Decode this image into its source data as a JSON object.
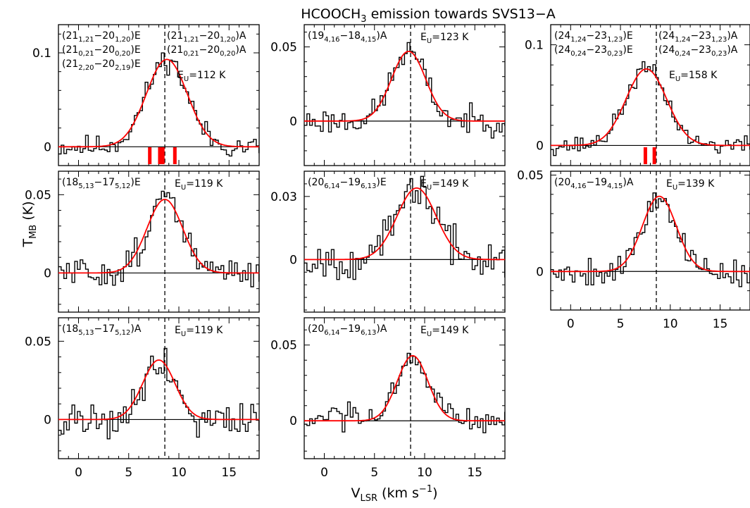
{
  "figure": {
    "title_main": "HCOOCH",
    "title_sub": "3",
    "title_tail": " emission towards SVS13−A",
    "ylabel_main": "T",
    "ylabel_sub": "MB",
    "ylabel_unit": " (K)",
    "xlabel_main": "V",
    "xlabel_sub": "LSR",
    "xlabel_unit": " (km s",
    "xlabel_sup": "−1",
    "xlabel_close": ")"
  },
  "colors": {
    "spectrum": "#000000",
    "fit": "#ff0000",
    "markers": "#ff0000",
    "baseline": "#000000"
  },
  "chart_data": [
    {
      "id": "p1",
      "type": "line",
      "xlim": [
        -2,
        18
      ],
      "ylim": [
        -0.02,
        0.13
      ],
      "yticks": [
        0,
        0.1
      ],
      "show_xticklabels": false,
      "vline": 8.6,
      "labels_left": [
        [
          "(21",
          "1,21",
          "−20",
          "1,20",
          ")E"
        ],
        [
          "(21",
          "0,21",
          "−20",
          "0,20",
          ")E"
        ],
        [
          "(21",
          "2,20",
          "−20",
          "2,19",
          ")E"
        ]
      ],
      "labels_right": [
        [
          "(21",
          "1,21",
          "−20",
          "1,20",
          ")A"
        ],
        [
          "(21",
          "0,21",
          "−20",
          "0,20",
          ")A"
        ]
      ],
      "eu": "112 K",
      "fit": {
        "amp": 0.093,
        "center": 8.8,
        "fwhm": 4.8
      },
      "markers": [
        7.1,
        8.1,
        8.4,
        9.6
      ],
      "seed": 11,
      "noise": 0.011,
      "series": [
        {
          "name": "spectrum"
        },
        {
          "name": "gaussian fit"
        }
      ]
    },
    {
      "id": "p2",
      "type": "line",
      "xlim": [
        -2,
        18
      ],
      "ylim": [
        -0.03,
        0.065
      ],
      "yticks": [
        0,
        0.05
      ],
      "show_xticklabels": false,
      "vline": 8.6,
      "labels_left": [
        [
          "(19",
          "4,16",
          "−18",
          "4,15",
          ")A"
        ]
      ],
      "labels_right": [],
      "eu": "123 K",
      "fit": {
        "amp": 0.047,
        "center": 8.4,
        "fwhm": 4.0
      },
      "markers": [],
      "seed": 23,
      "noise": 0.008,
      "series": [
        {
          "name": "spectrum"
        },
        {
          "name": "gaussian fit"
        }
      ]
    },
    {
      "id": "p3",
      "type": "line",
      "xlim": [
        -2,
        18
      ],
      "ylim": [
        -0.02,
        0.12
      ],
      "yticks": [
        0,
        0.1
      ],
      "show_xticklabels": false,
      "vline": 8.6,
      "labels_left": [
        [
          "(24",
          "1,24",
          "−23",
          "1,23",
          ")E"
        ],
        [
          "(24",
          "0,24",
          "−23",
          "0,23",
          ")E"
        ]
      ],
      "labels_right": [
        [
          "(24",
          "1,24",
          "−23",
          "1,23",
          ")A"
        ],
        [
          "(24",
          "0,24",
          "−23",
          "0,23",
          ")A"
        ]
      ],
      "eu": "158 K",
      "fit": {
        "amp": 0.076,
        "center": 7.6,
        "fwhm": 4.8
      },
      "markers": [
        7.5,
        8.4
      ],
      "seed": 37,
      "noise": 0.008,
      "series": [
        {
          "name": "spectrum"
        },
        {
          "name": "gaussian fit"
        }
      ]
    },
    {
      "id": "p4",
      "type": "line",
      "xlim": [
        -2,
        18
      ],
      "ylim": [
        -0.025,
        0.065
      ],
      "yticks": [
        0,
        0.05
      ],
      "show_xticklabels": false,
      "vline": 8.6,
      "labels_left": [
        [
          "(18",
          "5,13",
          "−17",
          "5,12",
          ")E"
        ]
      ],
      "labels_right": [],
      "eu": "119 K",
      "fit": {
        "amp": 0.047,
        "center": 8.6,
        "fwhm": 4.2
      },
      "markers": [],
      "seed": 51,
      "noise": 0.009,
      "series": [
        {
          "name": "spectrum"
        },
        {
          "name": "gaussian fit"
        }
      ]
    },
    {
      "id": "p5",
      "type": "line",
      "xlim": [
        -2,
        18
      ],
      "ylim": [
        -0.025,
        0.042
      ],
      "yticks": [
        0,
        0.03
      ],
      "show_xticklabels": false,
      "vline": 8.6,
      "labels_left": [
        [
          "(20",
          "6,14",
          "−19",
          "6,13",
          ")E"
        ]
      ],
      "labels_right": [],
      "eu": "149 K",
      "fit": {
        "amp": 0.034,
        "center": 9.2,
        "fwhm": 4.6
      },
      "markers": [],
      "seed": 67,
      "noise": 0.008,
      "series": [
        {
          "name": "spectrum"
        },
        {
          "name": "gaussian fit"
        }
      ]
    },
    {
      "id": "p6",
      "type": "line",
      "xlim": [
        -2,
        18
      ],
      "ylim": [
        -0.02,
        0.052
      ],
      "yticks": [
        0,
        0.05
      ],
      "show_xticklabels": true,
      "xticks": [
        0,
        5,
        10,
        15
      ],
      "vline": 8.6,
      "labels_left": [
        [
          "(20",
          "4,16",
          "−19",
          "4,15",
          ")A"
        ]
      ],
      "labels_right": [],
      "eu": "139 K",
      "fit": {
        "amp": 0.039,
        "center": 8.9,
        "fwhm": 4.0
      },
      "markers": [],
      "seed": 79,
      "noise": 0.007,
      "series": [
        {
          "name": "spectrum"
        },
        {
          "name": "gaussian fit"
        }
      ]
    },
    {
      "id": "p7",
      "type": "line",
      "xlim": [
        -2,
        18
      ],
      "ylim": [
        -0.025,
        0.065
      ],
      "yticks": [
        0,
        0.05
      ],
      "show_xticklabels": true,
      "xticks": [
        0,
        5,
        10,
        15
      ],
      "vline": 8.6,
      "labels_left": [
        [
          "(18",
          "5,13",
          "−17",
          "5,12",
          ")A"
        ]
      ],
      "labels_right": [],
      "eu": "119 K",
      "fit": {
        "amp": 0.038,
        "center": 8.0,
        "fwhm": 3.8
      },
      "markers": [],
      "seed": 91,
      "noise": 0.011,
      "series": [
        {
          "name": "spectrum"
        },
        {
          "name": "gaussian fit"
        }
      ]
    },
    {
      "id": "p8",
      "type": "line",
      "xlim": [
        -2,
        18
      ],
      "ylim": [
        -0.025,
        0.068
      ],
      "yticks": [
        0,
        0.05
      ],
      "show_xticklabels": true,
      "xticks": [
        0,
        5,
        10,
        15
      ],
      "vline": 8.6,
      "labels_left": [
        [
          "(20",
          "6,14",
          "−19",
          "6,13",
          ")A"
        ]
      ],
      "labels_right": [],
      "eu": "149 K",
      "fit": {
        "amp": 0.043,
        "center": 8.8,
        "fwhm": 3.6
      },
      "markers": [],
      "seed": 103,
      "noise": 0.008,
      "series": [
        {
          "name": "spectrum"
        },
        {
          "name": "gaussian fit"
        }
      ]
    }
  ]
}
